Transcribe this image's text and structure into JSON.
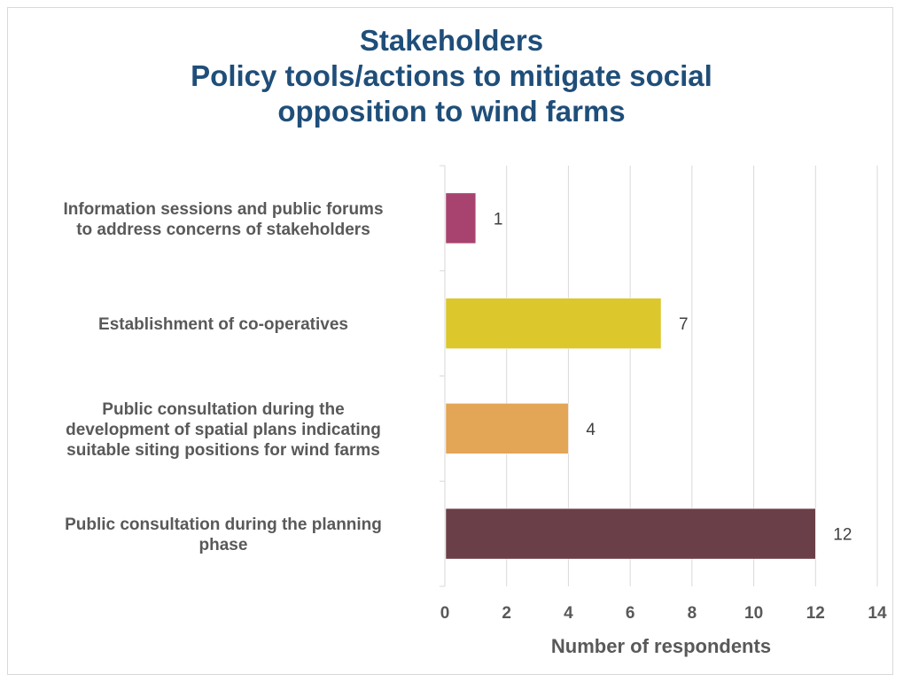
{
  "chart_data": {
    "type": "bar",
    "orientation": "horizontal",
    "title": [
      "Stakeholders",
      "Policy tools/actions to mitigate social",
      "opposition to wind farms"
    ],
    "xlabel": "Number of respondents",
    "ylabel": "",
    "xlim": [
      0,
      14
    ],
    "xticks": [
      "0",
      "2",
      "4",
      "6",
      "8",
      "10",
      "12",
      "14"
    ],
    "grid": true,
    "categories": [
      [
        "Information sessions and public forums",
        "to address concerns of stakeholders"
      ],
      [
        "Establishment of co-operatives"
      ],
      [
        "Public consultation during the",
        "development of spatial plans indicating",
        "suitable siting positions for wind farms"
      ],
      [
        "Public consultation during the planning",
        "phase"
      ]
    ],
    "values": [
      1,
      7,
      4,
      12
    ],
    "data_labels": [
      "1",
      "7",
      "4",
      "12"
    ],
    "colors": [
      "#a8436f",
      "#dcc72d",
      "#e3a556",
      "#6b3f47"
    ]
  }
}
